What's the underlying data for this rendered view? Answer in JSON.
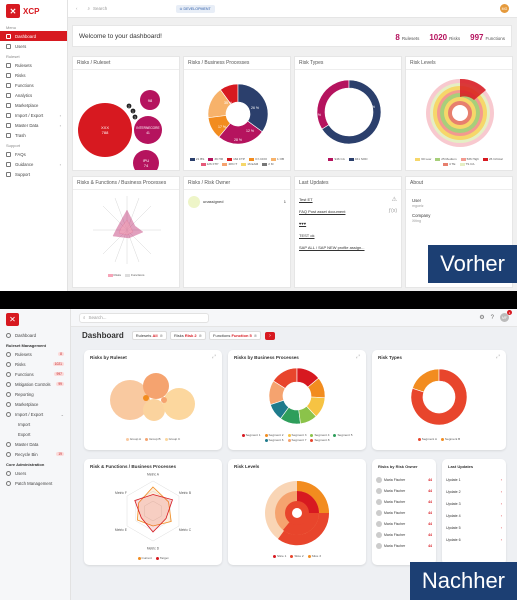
{
  "vorher": {
    "logo": "XCP",
    "sidebar": {
      "sections": [
        {
          "title": "Menu",
          "items": [
            {
              "label": "Dashboard",
              "active": true,
              "chevron": false
            },
            {
              "label": "Users",
              "chevron": false
            }
          ]
        },
        {
          "title": "Ruleset",
          "items": [
            {
              "label": "Rulesets",
              "chevron": false
            },
            {
              "label": "Risks",
              "chevron": false
            },
            {
              "label": "Functions",
              "chevron": false
            },
            {
              "label": "Analytics",
              "chevron": false
            },
            {
              "label": "Marketplace",
              "chevron": false
            },
            {
              "label": "Import / Export",
              "chevron": true
            },
            {
              "label": "Master Data",
              "chevron": true
            },
            {
              "label": "Trash",
              "chevron": false
            }
          ]
        },
        {
          "title": "Support",
          "items": [
            {
              "label": "FAQs",
              "chevron": false
            },
            {
              "label": "Guidance",
              "chevron": true
            },
            {
              "label": "Support",
              "chevron": false
            }
          ]
        }
      ]
    },
    "topbar": {
      "search_placeholder": "Search",
      "badge": "DEVELOPMENT",
      "avatar": "MG"
    },
    "welcome": "Welcome to your dashboard!",
    "stats": [
      {
        "value": "8",
        "label": "Rulesets"
      },
      {
        "value": "1020",
        "label": "Risks"
      },
      {
        "value": "997",
        "label": "Functions"
      }
    ],
    "cards": {
      "risks_ruleset": "Risks / Ruleset",
      "risks_bp": "Risks / Business Processes",
      "risk_types": "Risk Types",
      "risk_levels": "Risk Levels",
      "rf_bp": "Risks & Functions / Business Processes",
      "risk_owner": "Risks / Risk Owner",
      "last_updates": "Last Updates",
      "about": "About"
    },
    "bubbles": [
      {
        "label": "XXX",
        "value": "788",
        "color": "#d71920"
      },
      {
        "label": "98",
        "value": "",
        "color": "#b5135e"
      },
      {
        "label": "INTERNECORE",
        "value": "41",
        "color": "#b5135e"
      },
      {
        "label": "IPU",
        "value": "74",
        "color": "#b5135e"
      },
      {
        "label": "1",
        "value": "",
        "color": "#222"
      },
      {
        "label": "2",
        "value": "",
        "color": "#222"
      },
      {
        "label": "3",
        "value": "",
        "color": "#222"
      }
    ],
    "bp_legend": [
      "21 BS",
      "39 HR",
      "162 FTP",
      "3 h CDO",
      "1 OB",
      "126 FTP",
      "283 IT",
      "16 EAM",
      "2 M"
    ],
    "bp_labels": [
      "35 %",
      "17 %",
      "26 %",
      "12 %",
      "28 %"
    ],
    "risktype_labels": [
      "66 %",
      "34 %"
    ],
    "risktype_legend": [
      "946 CA",
      "461 SOD"
    ],
    "levels_legend": [
      "60 Low",
      "25 Medium",
      "536 High",
      "26 Critical",
      "4 TE",
      "7S C/L"
    ],
    "owner_name": "unassigned",
    "owner_count": "1",
    "updates": [
      "Test ET",
      "FAQ Post asset document",
      "♥♥♥",
      "TEST ok",
      "SAP ALL / SAP NEW profile assign..."
    ],
    "about": {
      "user_label": "User",
      "user_value": "mgoelz",
      "company_label": "Company",
      "company_value": "Xiting"
    },
    "radar_legend": [
      "Risks",
      "Functions"
    ],
    "caption": "Vorher"
  },
  "nachher": {
    "sidebar": {
      "sections": [
        {
          "title": "",
          "items": [
            {
              "label": "Dashboard",
              "badge": "",
              "chevron": false
            }
          ]
        },
        {
          "title": "Ruleset Management",
          "items": [
            {
              "label": "Rulesets",
              "badge": "8",
              "chevron": false
            },
            {
              "label": "Risks",
              "badge": "1021",
              "chevron": false
            },
            {
              "label": "Functions",
              "badge": "997",
              "chevron": false
            },
            {
              "label": "Mitigation Controls",
              "badge": "99",
              "chevron": false
            },
            {
              "label": "Reporting",
              "badge": "",
              "chevron": false
            },
            {
              "label": "Marketplace",
              "badge": "",
              "chevron": false
            },
            {
              "label": "Import / Export",
              "badge": "",
              "chevron": true
            },
            {
              "label": "Import",
              "badge": "",
              "sub": true,
              "chevron": false
            },
            {
              "label": "Export",
              "badge": "",
              "sub": true,
              "chevron": false
            },
            {
              "label": "Master Data",
              "badge": "",
              "chevron": false
            },
            {
              "label": "Recycle Bin",
              "badge": "19",
              "chevron": false
            }
          ]
        },
        {
          "title": "Core Administration",
          "items": [
            {
              "label": "Users",
              "badge": "",
              "chevron": false
            },
            {
              "label": "Patch Management",
              "badge": "",
              "chevron": false
            }
          ]
        }
      ]
    },
    "topbar": {
      "search_placeholder": "Search...",
      "avatar": "MF",
      "notif": "1"
    },
    "title": "Dashboard",
    "filters": [
      {
        "label": "Rulesets",
        "value": "All"
      },
      {
        "label": "Risks",
        "value": "Risk 2"
      },
      {
        "label": "Functions",
        "value": "Function 5"
      }
    ],
    "cards": {
      "risks_ruleset": "Risks by Ruleset",
      "risks_bp": "Risks by Business Processes",
      "risk_types": "Risk Types",
      "rf_bp": "Risk & Functions / Business Processes",
      "risk_levels": "Risk Levels",
      "risk_owner": "Risks by Risk Owner",
      "last_updates": "Last Updates"
    },
    "ruleset_legend": [
      "Group A",
      "Group B",
      "Group C"
    ],
    "bp_legend": [
      "Segment 1",
      "Segment 2",
      "Segment 3",
      "Segment 4",
      "Segment 5",
      "Segment 6",
      "Segment 7",
      "Segment 8"
    ],
    "risktype_legend": [
      "Segment A",
      "Segment B"
    ],
    "radar_axes": [
      "Metric A",
      "Metric B",
      "Metric C",
      "Metric D",
      "Metric E",
      "Metric F"
    ],
    "radar_legend": [
      "Current",
      "Target"
    ],
    "levels_legend": [
      "Slice 1",
      "Slice 2",
      "Slice 3"
    ],
    "owners": [
      {
        "name": "Maria Fischer",
        "count": "44"
      },
      {
        "name": "Maria Fischer",
        "count": "44"
      },
      {
        "name": "Maria Fischer",
        "count": "44"
      },
      {
        "name": "Maria Fischer",
        "count": "44"
      },
      {
        "name": "Maria Fischer",
        "count": "44"
      },
      {
        "name": "Maria Fischer",
        "count": "44"
      },
      {
        "name": "Maria Fischer",
        "count": "44"
      }
    ],
    "updates": [
      "Update 1",
      "Update 2",
      "Update 3",
      "Update 4",
      "Update 5",
      "Update 6"
    ],
    "caption": "Nachher"
  },
  "colors": {
    "accent": "#d71920",
    "magenta": "#b5135e",
    "navy": "#2b3f6c",
    "orange": "#f28c1f"
  }
}
